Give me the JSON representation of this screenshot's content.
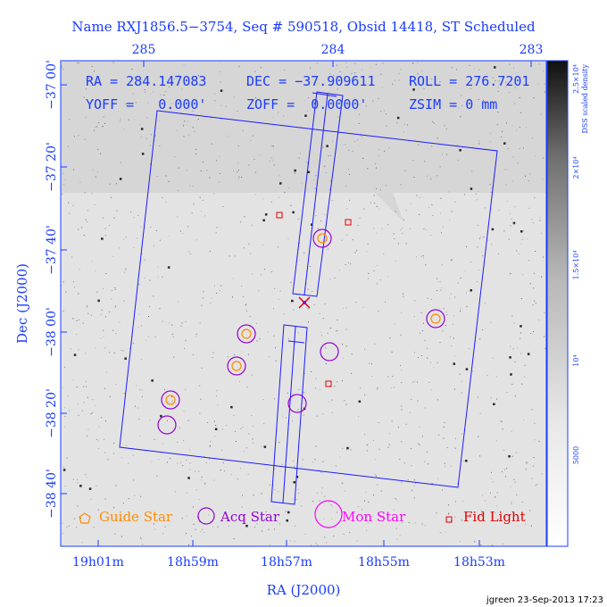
{
  "title": "Name RXJ1856.5−3754, Seq # 590518, Obsid 14418, ST Scheduled",
  "params": {
    "ra": "RA = 284.147083",
    "dec": "DEC = −37.909611",
    "roll": "ROLL = 276.7201",
    "yoff": "YOFF =   0.000'",
    "zoff": "ZOFF =  0.0000'",
    "zsim": "ZSIM = 0 mm"
  },
  "top_ticks": [
    "285",
    "284",
    "283"
  ],
  "left_ticks": [
    "−37 00'",
    "−37 20'",
    "−37 40'",
    "−38 00'",
    "−38 20'",
    "−38 40'"
  ],
  "bottom_ticks": [
    "19h01m",
    "18h59m",
    "18h57m",
    "18h55m",
    "18h53m"
  ],
  "x_axis_label": "RA (J2000)",
  "y_axis_label": "Dec (J2000)",
  "colorbar": {
    "label": "DSS scaled density",
    "ticks": [
      "2.5×10⁴",
      "2×10⁴",
      "1.5×10⁴",
      "10⁴",
      "5000"
    ]
  },
  "legend": {
    "guide": "Guide Star",
    "acq": "Acq Star",
    "mon": "Mon Star",
    "fid": "Fid Light"
  },
  "footer": "jgreen 23-Sep-2013 17:23",
  "colors": {
    "axis": "#1a3bff",
    "guide": "#ff8c00",
    "acq": "#9400d3",
    "mon": "#ff00ff",
    "fid": "#e00000",
    "outline": "#1a1aff"
  }
}
